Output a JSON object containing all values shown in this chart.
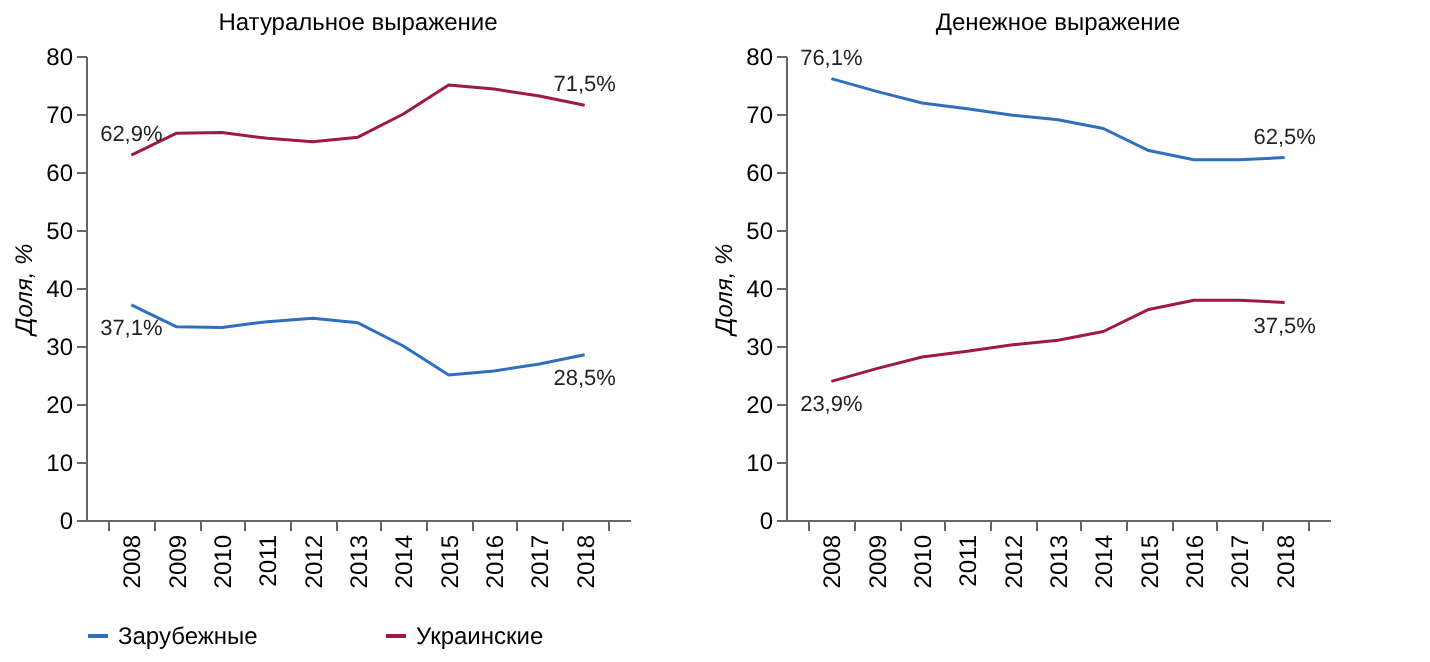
{
  "chart_data": [
    {
      "type": "line",
      "title": "Натуральное выражение",
      "ylabel": "Доля, %",
      "categories": [
        "2008",
        "2009",
        "2010",
        "2011",
        "2012",
        "2013",
        "2014",
        "2015",
        "2016",
        "2017",
        "2018"
      ],
      "ylim": [
        0,
        80
      ],
      "yticks": [
        0,
        10,
        20,
        30,
        40,
        50,
        60,
        70,
        80
      ],
      "grid": false,
      "legend": "bottom",
      "marker": "none",
      "line_style": "solid",
      "series": [
        {
          "name": "Зарубежные",
          "color": "#2f6fc0",
          "values": [
            37.1,
            33.3,
            33.2,
            34.2,
            34.8,
            34.0,
            30.0,
            25.0,
            25.7,
            26.9,
            28.5
          ]
        },
        {
          "name": "Украинские",
          "color": "#a0174a",
          "values": [
            62.9,
            66.7,
            66.8,
            65.8,
            65.2,
            66.0,
            70.0,
            75.0,
            74.3,
            73.1,
            71.5
          ]
        }
      ],
      "annotations": [
        {
          "text": "62,9%",
          "x": "2008",
          "y": 62.9
        },
        {
          "text": "71,5%",
          "x": "2018",
          "y": 71.5
        },
        {
          "text": "37,1%",
          "x": "2008",
          "y": 37.1
        },
        {
          "text": "28,5%",
          "x": "2018",
          "y": 28.5
        }
      ]
    },
    {
      "type": "line",
      "title": "Денежное выражение",
      "ylabel": "Доля, %",
      "categories": [
        "2008",
        "2009",
        "2010",
        "2011",
        "2012",
        "2013",
        "2014",
        "2015",
        "2016",
        "2017",
        "2018"
      ],
      "ylim": [
        0,
        80
      ],
      "yticks": [
        0,
        10,
        20,
        30,
        40,
        50,
        60,
        70,
        80
      ],
      "grid": false,
      "legend": "bottom",
      "marker": "none",
      "line_style": "solid",
      "series": [
        {
          "name": "Зарубежные",
          "color": "#2f6fc0",
          "values": [
            76.1,
            73.9,
            71.9,
            70.9,
            69.8,
            69.0,
            67.5,
            63.7,
            62.1,
            62.1,
            62.5
          ]
        },
        {
          "name": "Украинские",
          "color": "#a0174a",
          "values": [
            23.9,
            26.1,
            28.1,
            29.1,
            30.2,
            31.0,
            32.5,
            36.3,
            37.9,
            37.9,
            37.5
          ]
        }
      ],
      "annotations": [
        {
          "text": "76,1%",
          "x": "2008",
          "y": 76.1
        },
        {
          "text": "62,5%",
          "x": "2018",
          "y": 62.5
        },
        {
          "text": "23,9%",
          "x": "2008",
          "y": 23.9
        },
        {
          "text": "37,5%",
          "x": "2018",
          "y": 37.5
        }
      ]
    }
  ]
}
